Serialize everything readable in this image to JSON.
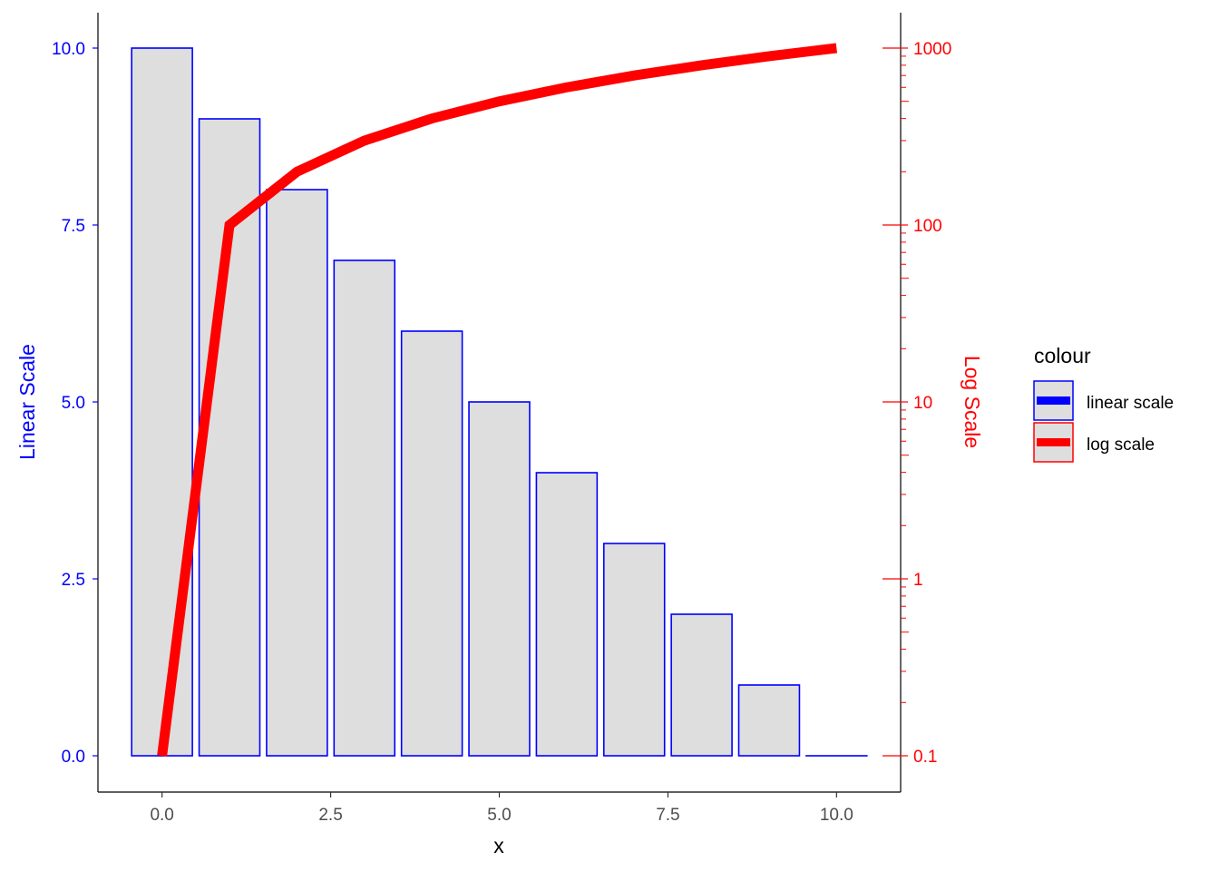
{
  "chart_data": {
    "type": "bar",
    "title": "",
    "xlabel": "x",
    "x_ticks": [
      "0.0",
      "2.5",
      "5.0",
      "7.5",
      "10.0"
    ],
    "x_tick_values": [
      0,
      2.5,
      5,
      7.5,
      10
    ],
    "xlim": [
      -0.95,
      10.95
    ],
    "y_left": {
      "label": "Linear Scale",
      "color": "#0000ff",
      "ticks": [
        "0.0",
        "2.5",
        "5.0",
        "7.5",
        "10.0"
      ],
      "tick_values": [
        0,
        2.5,
        5,
        7.5,
        10
      ],
      "ylim": [
        0,
        10
      ],
      "scale": "linear"
    },
    "y_right": {
      "label": "Log Scale",
      "color": "#ff0000",
      "ticks": [
        "0.1",
        "1",
        "10",
        "100",
        "1000"
      ],
      "tick_values": [
        0.1,
        1,
        10,
        100,
        1000
      ],
      "ylim": [
        0.1,
        1000
      ],
      "scale": "log10"
    },
    "series": [
      {
        "name": "linear scale",
        "type": "bar",
        "axis": "left",
        "color": "#0000ff",
        "fill": "#dedede",
        "x": [
          0,
          1,
          2,
          3,
          4,
          5,
          6,
          7,
          8,
          9,
          10
        ],
        "values": [
          10,
          9,
          8,
          7,
          6,
          5,
          4,
          3,
          2,
          1,
          0
        ]
      },
      {
        "name": "log scale",
        "type": "line",
        "axis": "right",
        "color": "#ff0000",
        "x": [
          0,
          1,
          2,
          3,
          4,
          5,
          6,
          7,
          8,
          9,
          10
        ],
        "values": [
          0.1,
          100,
          200,
          300,
          400,
          500,
          600,
          700,
          800,
          900,
          1000
        ]
      }
    ],
    "legend": {
      "title": "colour",
      "position": "right",
      "entries": [
        "linear scale",
        "log scale"
      ]
    },
    "grid": false
  }
}
